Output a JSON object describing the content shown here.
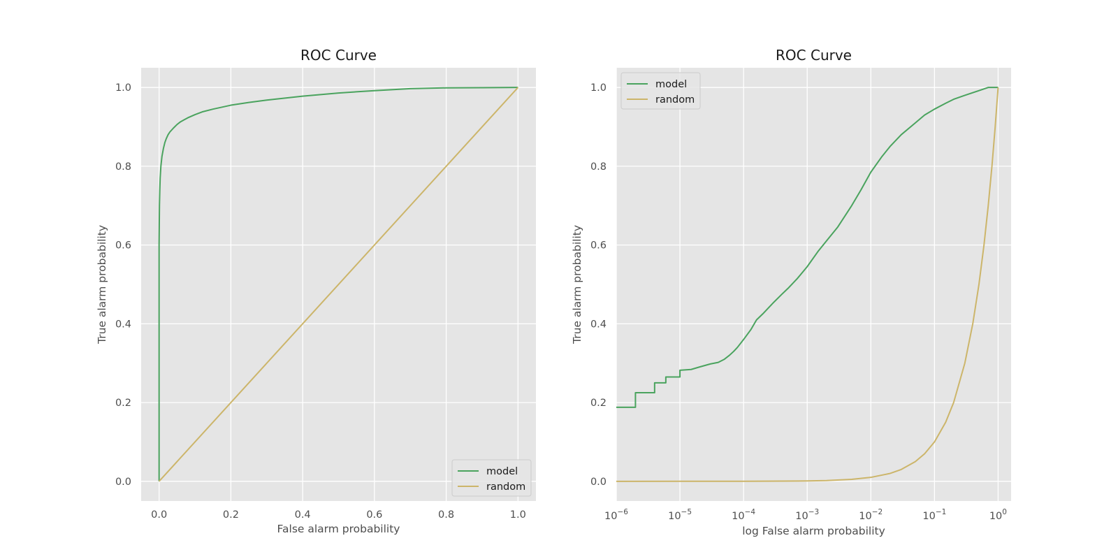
{
  "chart_data": [
    {
      "type": "line",
      "title": "ROC Curve",
      "xlabel": "False alarm probability",
      "ylabel": "True alarm probability",
      "xscale": "linear",
      "xlim": [
        -0.05,
        1.05
      ],
      "ylim": [
        -0.05,
        1.05
      ],
      "xticks": [
        {
          "value": 0.0,
          "label": "0.0"
        },
        {
          "value": 0.2,
          "label": "0.2"
        },
        {
          "value": 0.4,
          "label": "0.4"
        },
        {
          "value": 0.6,
          "label": "0.6"
        },
        {
          "value": 0.8,
          "label": "0.8"
        },
        {
          "value": 1.0,
          "label": "1.0"
        }
      ],
      "yticks": [
        {
          "value": 0.0,
          "label": "0.0"
        },
        {
          "value": 0.2,
          "label": "0.2"
        },
        {
          "value": 0.4,
          "label": "0.4"
        },
        {
          "value": 0.6,
          "label": "0.6"
        },
        {
          "value": 0.8,
          "label": "0.8"
        },
        {
          "value": 1.0,
          "label": "1.0"
        }
      ],
      "grid": true,
      "legend_position": "lower-right",
      "series": [
        {
          "name": "model",
          "color": "#4aa35e",
          "x": [
            0.0,
            0.0,
            0.0005,
            0.001,
            0.002,
            0.003,
            0.005,
            0.008,
            0.012,
            0.016,
            0.02,
            0.025,
            0.03,
            0.04,
            0.05,
            0.06,
            0.07,
            0.08,
            0.1,
            0.12,
            0.15,
            0.2,
            0.25,
            0.3,
            0.4,
            0.5,
            0.6,
            0.7,
            0.8,
            0.9,
            1.0
          ],
          "y": [
            0.0,
            0.6,
            0.65,
            0.7,
            0.74,
            0.77,
            0.8,
            0.825,
            0.845,
            0.86,
            0.87,
            0.88,
            0.887,
            0.897,
            0.906,
            0.913,
            0.918,
            0.923,
            0.931,
            0.938,
            0.945,
            0.955,
            0.962,
            0.968,
            0.978,
            0.986,
            0.992,
            0.997,
            0.999,
            0.9995,
            1.0
          ]
        },
        {
          "name": "random",
          "color": "#ccb56a",
          "x": [
            0.0,
            1.0
          ],
          "y": [
            0.0,
            1.0
          ]
        }
      ]
    },
    {
      "type": "line",
      "title": "ROC Curve",
      "xlabel": "log False alarm probability",
      "ylabel": "True alarm probability",
      "xscale": "log",
      "xlim": [
        1e-06,
        1.6
      ],
      "ylim": [
        -0.05,
        1.05
      ],
      "xticks": [
        {
          "value": 1e-06,
          "base": "10",
          "exp": "−6"
        },
        {
          "value": 1e-05,
          "base": "10",
          "exp": "−5"
        },
        {
          "value": 0.0001,
          "base": "10",
          "exp": "−4"
        },
        {
          "value": 0.001,
          "base": "10",
          "exp": "−3"
        },
        {
          "value": 0.01,
          "base": "10",
          "exp": "−2"
        },
        {
          "value": 0.1,
          "base": "10",
          "exp": "−1"
        },
        {
          "value": 1,
          "base": "10",
          "exp": "0"
        }
      ],
      "yticks": [
        {
          "value": 0.0,
          "label": "0.0"
        },
        {
          "value": 0.2,
          "label": "0.2"
        },
        {
          "value": 0.4,
          "label": "0.4"
        },
        {
          "value": 0.6,
          "label": "0.6"
        },
        {
          "value": 0.8,
          "label": "0.8"
        },
        {
          "value": 1.0,
          "label": "1.0"
        }
      ],
      "grid": true,
      "legend_position": "upper-left",
      "series": [
        {
          "name": "model",
          "color": "#4aa35e",
          "x": [
            1e-06,
            2e-06,
            2e-06,
            4e-06,
            4e-06,
            6e-06,
            6e-06,
            1e-05,
            1e-05,
            1.5e-05,
            2e-05,
            3e-05,
            4e-05,
            5e-05,
            6e-05,
            7e-05,
            8e-05,
            0.0001,
            0.00013,
            0.00016,
            0.0002,
            0.0003,
            0.0004,
            0.0005,
            0.0007,
            0.001,
            0.0015,
            0.002,
            0.003,
            0.005,
            0.007,
            0.01,
            0.015,
            0.02,
            0.03,
            0.05,
            0.07,
            0.1,
            0.15,
            0.2,
            0.3,
            0.5,
            0.7,
            0.8,
            0.9,
            1.0
          ],
          "y": [
            0.188,
            0.188,
            0.225,
            0.225,
            0.25,
            0.25,
            0.265,
            0.265,
            0.282,
            0.284,
            0.29,
            0.298,
            0.302,
            0.31,
            0.32,
            0.33,
            0.34,
            0.36,
            0.385,
            0.41,
            0.425,
            0.455,
            0.475,
            0.49,
            0.515,
            0.545,
            0.585,
            0.61,
            0.645,
            0.7,
            0.74,
            0.785,
            0.825,
            0.85,
            0.88,
            0.91,
            0.93,
            0.945,
            0.96,
            0.97,
            0.98,
            0.992,
            1.0,
            1.0,
            1.0,
            1.0
          ]
        },
        {
          "name": "random",
          "color": "#ccb56a",
          "x": [
            1e-06,
            1e-05,
            0.0001,
            0.001,
            0.002,
            0.005,
            0.01,
            0.02,
            0.03,
            0.05,
            0.07,
            0.1,
            0.15,
            0.2,
            0.3,
            0.4,
            0.5,
            0.6,
            0.7,
            0.8,
            0.9,
            1.0
          ],
          "y": [
            1e-06,
            1e-05,
            0.0001,
            0.001,
            0.002,
            0.005,
            0.01,
            0.02,
            0.03,
            0.05,
            0.07,
            0.1,
            0.15,
            0.2,
            0.3,
            0.4,
            0.5,
            0.6,
            0.7,
            0.8,
            0.9,
            1.0
          ]
        }
      ]
    }
  ]
}
